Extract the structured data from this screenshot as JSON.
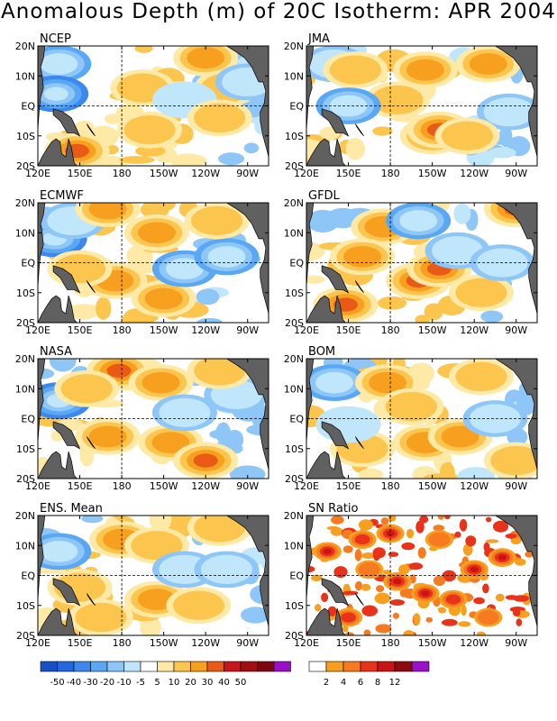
{
  "title": "Anomalous Depth (m) of 20C Isotherm: APR 2004",
  "chart_data": [
    {
      "type": "heatmap",
      "title": "NCEP",
      "field": "depth_anomaly",
      "xticks": [
        "120E",
        "150E",
        "180",
        "150W",
        "120W",
        "90W"
      ],
      "yticks": [
        "20N",
        "10N",
        "EQ",
        "10S",
        "20S"
      ],
      "highlights": [
        {
          "lon": 135,
          "lat": 14,
          "value": -20
        },
        {
          "lon": 133,
          "lat": 4,
          "value": -30
        },
        {
          "lon": 148,
          "lat": -15,
          "value": 30
        },
        {
          "lon": 195,
          "lat": 6,
          "value": 10
        },
        {
          "lon": 240,
          "lat": 16,
          "value": 20
        },
        {
          "lon": 255,
          "lat": 6,
          "value": 10
        },
        {
          "lon": 200,
          "lat": -8,
          "value": 10
        },
        {
          "lon": 270,
          "lat": 8,
          "value": -10
        },
        {
          "lon": 225,
          "lat": 2,
          "value": -5
        },
        {
          "lon": 250,
          "lat": -4,
          "value": 10
        }
      ]
    },
    {
      "type": "heatmap",
      "title": "JMA",
      "field": "depth_anomaly",
      "xticks": [
        "120E",
        "150E",
        "180",
        "150W",
        "120W",
        "90W"
      ],
      "yticks": [
        "20N",
        "10N",
        "EQ",
        "10S",
        "20S"
      ],
      "highlights": [
        {
          "lon": 140,
          "lat": 14,
          "value": -10
        },
        {
          "lon": 155,
          "lat": 12,
          "value": 10
        },
        {
          "lon": 205,
          "lat": 12,
          "value": 20
        },
        {
          "lon": 210,
          "lat": -10,
          "value": 20
        },
        {
          "lon": 215,
          "lat": -8,
          "value": 30
        },
        {
          "lon": 185,
          "lat": 2,
          "value": 10
        },
        {
          "lon": 150,
          "lat": 0,
          "value": -20
        },
        {
          "lon": 250,
          "lat": 14,
          "value": 20
        },
        {
          "lon": 265,
          "lat": -2,
          "value": -10
        },
        {
          "lon": 235,
          "lat": -10,
          "value": 10
        }
      ]
    },
    {
      "type": "heatmap",
      "title": "ECMWF",
      "field": "depth_anomaly",
      "xticks": [
        "120E",
        "150E",
        "180",
        "150W",
        "120W",
        "90W"
      ],
      "yticks": [
        "20N",
        "10N",
        "EQ",
        "10S",
        "20S"
      ],
      "highlights": [
        {
          "lon": 132,
          "lat": 8,
          "value": -30
        },
        {
          "lon": 145,
          "lat": 14,
          "value": -10
        },
        {
          "lon": 170,
          "lat": 18,
          "value": 20
        },
        {
          "lon": 205,
          "lat": 10,
          "value": 20
        },
        {
          "lon": 175,
          "lat": -6,
          "value": 20
        },
        {
          "lon": 210,
          "lat": -12,
          "value": 20
        },
        {
          "lon": 225,
          "lat": -2,
          "value": -20
        },
        {
          "lon": 255,
          "lat": 2,
          "value": -20
        },
        {
          "lon": 248,
          "lat": 14,
          "value": 10
        },
        {
          "lon": 150,
          "lat": -2,
          "value": 10
        }
      ]
    },
    {
      "type": "heatmap",
      "title": "GFDL",
      "field": "depth_anomaly",
      "xticks": [
        "120E",
        "150E",
        "180",
        "150W",
        "120W",
        "90W"
      ],
      "yticks": [
        "20N",
        "10N",
        "EQ",
        "10S",
        "20S"
      ],
      "highlights": [
        {
          "lon": 175,
          "lat": 12,
          "value": 20
        },
        {
          "lon": 160,
          "lat": 2,
          "value": 20
        },
        {
          "lon": 200,
          "lat": -6,
          "value": 30
        },
        {
          "lon": 215,
          "lat": -2,
          "value": 30
        },
        {
          "lon": 148,
          "lat": -14,
          "value": 30
        },
        {
          "lon": 200,
          "lat": 14,
          "value": -20
        },
        {
          "lon": 228,
          "lat": 4,
          "value": -10
        },
        {
          "lon": 270,
          "lat": 18,
          "value": 30
        },
        {
          "lon": 245,
          "lat": -10,
          "value": 10
        },
        {
          "lon": 260,
          "lat": 0,
          "value": -10
        }
      ]
    },
    {
      "type": "heatmap",
      "title": "NASA",
      "field": "depth_anomaly",
      "xticks": [
        "120E",
        "150E",
        "180",
        "150W",
        "120W",
        "90W"
      ],
      "yticks": [
        "20N",
        "10N",
        "EQ",
        "10S",
        "20S"
      ],
      "highlights": [
        {
          "lon": 135,
          "lat": 6,
          "value": -30
        },
        {
          "lon": 178,
          "lat": 16,
          "value": 30
        },
        {
          "lon": 208,
          "lat": 12,
          "value": 20
        },
        {
          "lon": 215,
          "lat": -8,
          "value": 20
        },
        {
          "lon": 240,
          "lat": -14,
          "value": 30
        },
        {
          "lon": 170,
          "lat": -6,
          "value": 20
        },
        {
          "lon": 225,
          "lat": 2,
          "value": -10
        },
        {
          "lon": 262,
          "lat": 8,
          "value": -10
        },
        {
          "lon": 155,
          "lat": 10,
          "value": 10
        },
        {
          "lon": 250,
          "lat": 16,
          "value": 10
        }
      ]
    },
    {
      "type": "heatmap",
      "title": "BOM",
      "field": "depth_anomaly",
      "xticks": [
        "120E",
        "150E",
        "180",
        "150W",
        "120W",
        "90W"
      ],
      "yticks": [
        "20N",
        "10N",
        "EQ",
        "10S",
        "20S"
      ],
      "highlights": [
        {
          "lon": 140,
          "lat": 12,
          "value": -20
        },
        {
          "lon": 178,
          "lat": 12,
          "value": 20
        },
        {
          "lon": 205,
          "lat": -8,
          "value": 20
        },
        {
          "lon": 230,
          "lat": -6,
          "value": 20
        },
        {
          "lon": 245,
          "lat": 14,
          "value": 10
        },
        {
          "lon": 255,
          "lat": 0,
          "value": -10
        },
        {
          "lon": 160,
          "lat": -10,
          "value": 10
        },
        {
          "lon": 270,
          "lat": -14,
          "value": 10
        },
        {
          "lon": 195,
          "lat": 4,
          "value": 10
        },
        {
          "lon": 150,
          "lat": -2,
          "value": -5
        }
      ]
    },
    {
      "type": "heatmap",
      "title": "ENS. Mean",
      "field": "depth_anomaly",
      "xticks": [
        "120E",
        "150E",
        "180",
        "150W",
        "120W",
        "90W"
      ],
      "yticks": [
        "20N",
        "10N",
        "EQ",
        "10S",
        "20S"
      ],
      "highlights": [
        {
          "lon": 135,
          "lat": 8,
          "value": -20
        },
        {
          "lon": 180,
          "lat": 12,
          "value": 20
        },
        {
          "lon": 205,
          "lat": 10,
          "value": 10
        },
        {
          "lon": 205,
          "lat": -8,
          "value": 20
        },
        {
          "lon": 235,
          "lat": -10,
          "value": 10
        },
        {
          "lon": 225,
          "lat": 2,
          "value": -10
        },
        {
          "lon": 255,
          "lat": 2,
          "value": -10
        },
        {
          "lon": 150,
          "lat": -4,
          "value": 10
        },
        {
          "lon": 250,
          "lat": 16,
          "value": 10
        },
        {
          "lon": 165,
          "lat": -14,
          "value": 10
        }
      ]
    },
    {
      "type": "heatmap",
      "title": "SN Ratio",
      "field": "signal_to_noise",
      "xticks": [
        "120E",
        "150E",
        "180",
        "150W",
        "120W",
        "90W"
      ],
      "yticks": [
        "20N",
        "10N",
        "EQ",
        "10S",
        "20S"
      ],
      "highlights": [
        {
          "lon": 135,
          "lat": 8,
          "value": 8
        },
        {
          "lon": 160,
          "lat": 12,
          "value": 6
        },
        {
          "lon": 180,
          "lat": 14,
          "value": 8
        },
        {
          "lon": 185,
          "lat": -2,
          "value": 12
        },
        {
          "lon": 205,
          "lat": -6,
          "value": 8
        },
        {
          "lon": 225,
          "lat": -8,
          "value": 6
        },
        {
          "lon": 240,
          "lat": 2,
          "value": 12
        },
        {
          "lon": 260,
          "lat": 6,
          "value": 8
        },
        {
          "lon": 150,
          "lat": -14,
          "value": 6
        },
        {
          "lon": 215,
          "lat": 12,
          "value": 4
        },
        {
          "lon": 250,
          "lat": -14,
          "value": 4
        },
        {
          "lon": 165,
          "lat": 2,
          "value": 4
        }
      ]
    }
  ],
  "legends": [
    {
      "name": "anomaly",
      "labels": [
        "-50",
        "-40",
        "-30",
        "-20",
        "-10",
        "-5",
        "5",
        "10",
        "20",
        "30",
        "40",
        "50"
      ],
      "colors": [
        "#1850c8",
        "#2468e0",
        "#3c88ec",
        "#5aa8f4",
        "#8ec6f8",
        "#bfe6fa",
        "#ffffff",
        "#fee9a6",
        "#fbc54e",
        "#f7a020",
        "#e85a16",
        "#c8161c",
        "#a01010",
        "#7a0610",
        "#9a10c8"
      ]
    },
    {
      "name": "sn",
      "labels": [
        "2",
        "4",
        "6",
        "8",
        "12"
      ],
      "colors": [
        "#ffffff",
        "#f7a020",
        "#f57a20",
        "#e8321a",
        "#c81414",
        "#8c0a10",
        "#9a10c8"
      ]
    }
  ]
}
